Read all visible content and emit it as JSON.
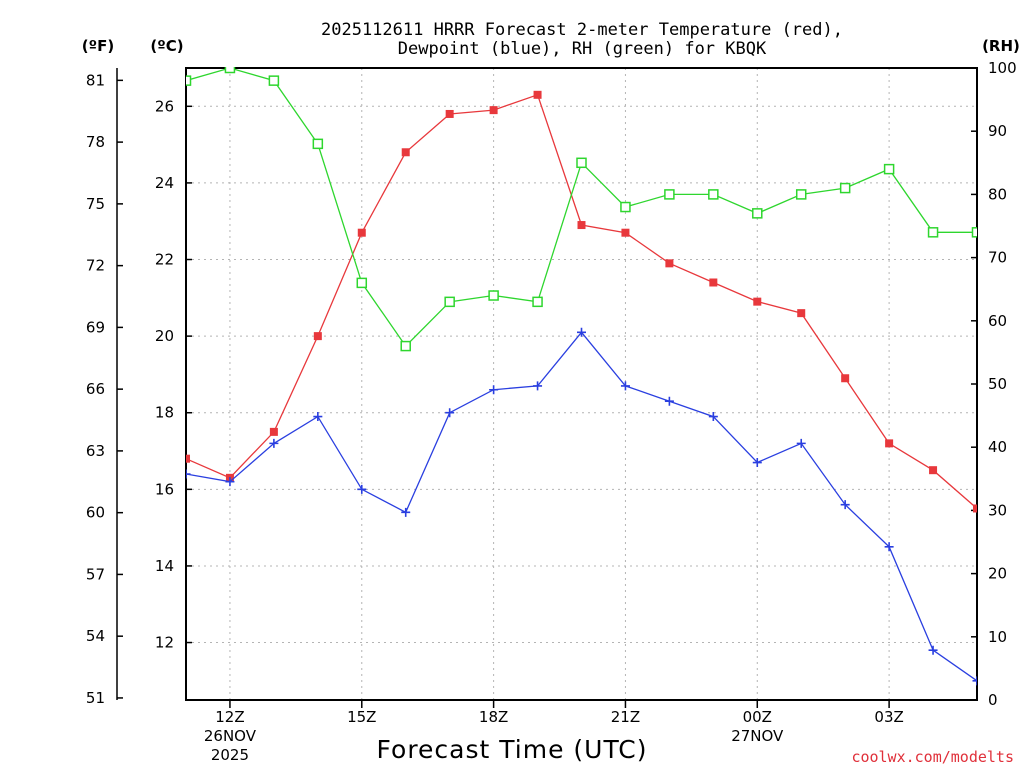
{
  "chart_data": {
    "type": "line",
    "title_line1": "2025112611 HRRR Forecast 2-meter Temperature (red),",
    "title_line2": "Dewpoint (blue), RH (green) for KBQK",
    "xlabel": "Forecast Time (UTC)",
    "credit": "coolwx.com/modelts",
    "unit_f": "(ºF)",
    "unit_c": "(ºC)",
    "unit_rh": "(RH)",
    "x_hours": [
      11,
      12,
      13,
      14,
      15,
      16,
      17,
      18,
      19,
      20,
      21,
      22,
      23,
      24,
      25,
      26,
      27,
      28,
      29
    ],
    "xlim": [
      11,
      29
    ],
    "x_ticks": [
      {
        "x": 12,
        "l1": "12Z",
        "l2": "26NOV",
        "l3": "2025"
      },
      {
        "x": 15,
        "l1": "15Z",
        "l2": "",
        "l3": ""
      },
      {
        "x": 18,
        "l1": "18Z",
        "l2": "",
        "l3": ""
      },
      {
        "x": 21,
        "l1": "21Z",
        "l2": "",
        "l3": ""
      },
      {
        "x": 24,
        "l1": "00Z",
        "l2": "27NOV",
        "l3": ""
      },
      {
        "x": 27,
        "l1": "03Z",
        "l2": "",
        "l3": ""
      }
    ],
    "ylim_c": [
      10.5,
      27.0
    ],
    "y_ticks_c": [
      "12",
      "14",
      "16",
      "18",
      "20",
      "22",
      "24",
      "26"
    ],
    "ylim_f": [
      50.9,
      81.6
    ],
    "y_ticks_f": [
      "51",
      "54",
      "57",
      "60",
      "63",
      "66",
      "69",
      "72",
      "75",
      "78",
      "81"
    ],
    "ylim_rh": [
      0,
      100
    ],
    "y_ticks_rh": [
      "0",
      "10",
      "20",
      "30",
      "40",
      "50",
      "60",
      "70",
      "80",
      "90",
      "100"
    ],
    "series": [
      {
        "name": "Temperature",
        "color": "#e8383c",
        "marker": "filled-square",
        "axis": "celsius",
        "values": [
          16.8,
          16.3,
          17.5,
          20.0,
          22.7,
          24.8,
          25.8,
          25.9,
          26.3,
          22.9,
          22.7,
          21.9,
          21.4,
          20.9,
          20.6,
          18.9,
          17.2,
          16.5,
          15.5
        ]
      },
      {
        "name": "Dewpoint",
        "color": "#2a3fe0",
        "marker": "plus",
        "axis": "celsius",
        "values": [
          16.4,
          16.2,
          17.2,
          17.9,
          16.0,
          15.4,
          18.0,
          18.6,
          18.7,
          20.1,
          18.7,
          18.3,
          17.9,
          16.7,
          17.2,
          15.6,
          14.5,
          11.8,
          11.0
        ]
      },
      {
        "name": "RH",
        "color": "#2ed62e",
        "marker": "open-square",
        "axis": "rh",
        "values": [
          98,
          100,
          98,
          88,
          66,
          56,
          63,
          64,
          63,
          85,
          78,
          80,
          80,
          77,
          80,
          81,
          84,
          74,
          74
        ]
      }
    ]
  }
}
